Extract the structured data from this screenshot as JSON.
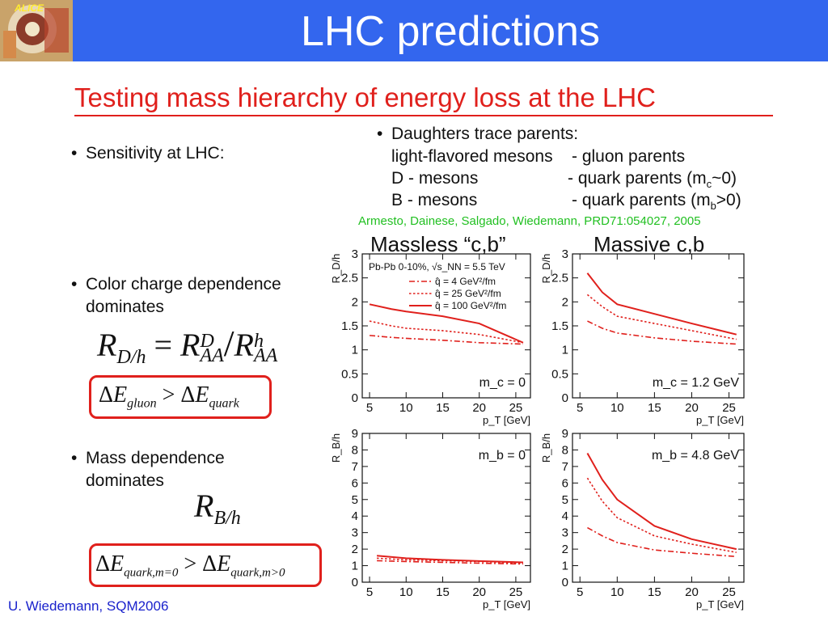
{
  "header": {
    "title": "LHC predictions",
    "logo_icon": "alice-logo"
  },
  "subtitle": "Testing mass hierarchy of energy loss at the LHC",
  "left": {
    "bullet1": "Sensitivity at LHC:",
    "bullet2_l1": "Color charge dependence",
    "bullet2_l2": "dominates",
    "bullet3_l1": "Mass dependence",
    "bullet3_l2": "dominates"
  },
  "right": {
    "bullet": "Daughters trace parents:",
    "rows": [
      {
        "name": "light-flavored mesons",
        "parent": "- gluon parents"
      },
      {
        "name": "D - mesons",
        "parent": "- quark parents (m",
        "sub": "c",
        "tail": "~0)"
      },
      {
        "name": "B - mesons",
        "parent": "- quark parents (m",
        "sub": "b",
        "tail": ">0)"
      }
    ],
    "reference": "Armesto, Dainese, Salgado, Wiedemann, PRD71:054027, 2005",
    "plot_title_left": "Massless “c,b”",
    "plot_title_right": "Massive c,b"
  },
  "credit": "U. Wiedemann, SQM2006",
  "chart_data": [
    {
      "type": "line",
      "ylabel": "R_D/h",
      "xlabel": "p_T [GeV]",
      "xlim": [
        4,
        27
      ],
      "ylim": [
        0,
        3
      ],
      "xticks": [
        5,
        10,
        15,
        20,
        25
      ],
      "yticks": [
        0,
        0.5,
        1,
        1.5,
        2,
        2.5,
        3
      ],
      "annotation": "m_c = 0",
      "legend_header": "Pb-Pb 0-10%, √s_NN = 5.5 TeV",
      "legend_entries": [
        "q̂ = 4 GeV²/fm",
        "q̂ = 25 GeV²/fm",
        "q̂ = 100 GeV²/fm"
      ],
      "series": [
        {
          "name": "q̂ = 4 GeV²/fm",
          "style": "dashdot",
          "x": [
            5,
            8,
            10,
            15,
            20,
            26
          ],
          "y": [
            1.3,
            1.26,
            1.24,
            1.2,
            1.15,
            1.12
          ]
        },
        {
          "name": "q̂ = 25 GeV²/fm",
          "style": "dotted",
          "x": [
            5,
            8,
            10,
            15,
            20,
            26
          ],
          "y": [
            1.6,
            1.5,
            1.45,
            1.4,
            1.32,
            1.15
          ]
        },
        {
          "name": "q̂ = 100 GeV²/fm",
          "style": "solid",
          "x": [
            5,
            8,
            10,
            15,
            20,
            26
          ],
          "y": [
            1.95,
            1.85,
            1.8,
            1.7,
            1.55,
            1.15
          ]
        }
      ]
    },
    {
      "type": "line",
      "ylabel": "R_D/h",
      "xlabel": "p_T [GeV]",
      "xlim": [
        4,
        27
      ],
      "ylim": [
        0,
        3
      ],
      "xticks": [
        5,
        10,
        15,
        20,
        25
      ],
      "yticks": [
        0,
        0.5,
        1,
        1.5,
        2,
        2.5,
        3
      ],
      "annotation": "m_c = 1.2 GeV",
      "series": [
        {
          "name": "q̂ = 4 GeV²/fm",
          "style": "dashdot",
          "x": [
            6,
            8,
            10,
            15,
            20,
            26
          ],
          "y": [
            1.6,
            1.45,
            1.35,
            1.25,
            1.18,
            1.12
          ]
        },
        {
          "name": "q̂ = 25 GeV²/fm",
          "style": "dotted",
          "x": [
            6,
            8,
            10,
            15,
            20,
            26
          ],
          "y": [
            2.15,
            1.9,
            1.7,
            1.55,
            1.4,
            1.22
          ]
        },
        {
          "name": "q̂ = 100 GeV²/fm",
          "style": "solid",
          "x": [
            6,
            8,
            10,
            15,
            20,
            26
          ],
          "y": [
            2.6,
            2.2,
            1.95,
            1.75,
            1.55,
            1.32
          ]
        }
      ]
    },
    {
      "type": "line",
      "ylabel": "R_B/h",
      "xlabel": "p_T [GeV]",
      "xlim": [
        4,
        27
      ],
      "ylim": [
        0,
        9
      ],
      "xticks": [
        5,
        10,
        15,
        20,
        25
      ],
      "yticks": [
        0,
        1,
        2,
        3,
        4,
        5,
        6,
        7,
        8,
        9
      ],
      "annotation": "m_b = 0",
      "series": [
        {
          "name": "q̂ = 4 GeV²/fm",
          "style": "dashdot",
          "x": [
            6,
            10,
            15,
            20,
            26
          ],
          "y": [
            1.3,
            1.25,
            1.2,
            1.15,
            1.1
          ]
        },
        {
          "name": "q̂ = 25 GeV²/fm",
          "style": "dotted",
          "x": [
            6,
            10,
            15,
            20,
            26
          ],
          "y": [
            1.45,
            1.35,
            1.3,
            1.25,
            1.15
          ]
        },
        {
          "name": "q̂ = 100 GeV²/fm",
          "style": "solid",
          "x": [
            6,
            10,
            15,
            20,
            26
          ],
          "y": [
            1.6,
            1.45,
            1.35,
            1.28,
            1.2
          ]
        }
      ]
    },
    {
      "type": "line",
      "ylabel": "R_B/h",
      "xlabel": "p_T [GeV]",
      "xlim": [
        4,
        27
      ],
      "ylim": [
        0,
        9
      ],
      "xticks": [
        5,
        10,
        15,
        20,
        25
      ],
      "yticks": [
        0,
        1,
        2,
        3,
        4,
        5,
        6,
        7,
        8,
        9
      ],
      "annotation": "m_b = 4.8 GeV",
      "series": [
        {
          "name": "q̂ = 4 GeV²/fm",
          "style": "dashdot",
          "x": [
            6,
            8,
            10,
            15,
            20,
            26
          ],
          "y": [
            3.3,
            2.8,
            2.4,
            1.95,
            1.75,
            1.55
          ]
        },
        {
          "name": "q̂ = 25 GeV²/fm",
          "style": "dotted",
          "x": [
            6,
            8,
            10,
            15,
            20,
            26
          ],
          "y": [
            6.3,
            4.9,
            3.9,
            2.8,
            2.3,
            1.8
          ]
        },
        {
          "name": "q̂ = 100 GeV²/fm",
          "style": "solid",
          "x": [
            6,
            8,
            10,
            15,
            20,
            26
          ],
          "y": [
            7.8,
            6.2,
            5.0,
            3.4,
            2.6,
            2.0
          ]
        }
      ]
    }
  ]
}
